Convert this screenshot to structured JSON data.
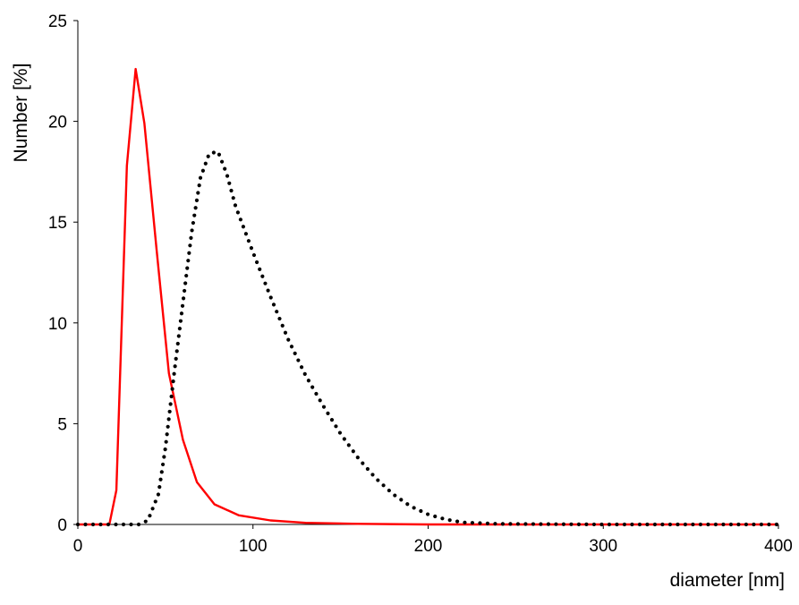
{
  "chart_data": {
    "type": "line",
    "title": "",
    "xlabel": "diameter [nm]",
    "ylabel": "Number [%]",
    "xlim": [
      0,
      400
    ],
    "ylim": [
      0,
      25
    ],
    "x_ticks": [
      0,
      100,
      200,
      300,
      400
    ],
    "y_ticks": [
      0,
      5,
      10,
      15,
      20,
      25
    ],
    "grid": false,
    "legend": "none",
    "series": [
      {
        "style": "solid",
        "color": "#ff0000",
        "points": [
          [
            0,
            0
          ],
          [
            18,
            0
          ],
          [
            22,
            1.7
          ],
          [
            28,
            17.8
          ],
          [
            33,
            22.6
          ],
          [
            38,
            19.9
          ],
          [
            45,
            13.6
          ],
          [
            52,
            7.5
          ],
          [
            60,
            4.2
          ],
          [
            68,
            2.1
          ],
          [
            78,
            1.0
          ],
          [
            92,
            0.45
          ],
          [
            110,
            0.2
          ],
          [
            130,
            0.08
          ],
          [
            160,
            0.03
          ],
          [
            200,
            0.0
          ],
          [
            400,
            0.0
          ]
        ]
      },
      {
        "style": "dotted",
        "color": "#000000",
        "points": [
          [
            0,
            0
          ],
          [
            35,
            0
          ],
          [
            40,
            0.2
          ],
          [
            46,
            1.5
          ],
          [
            50,
            3.8
          ],
          [
            55,
            7.5
          ],
          [
            60,
            11.0
          ],
          [
            65,
            14.5
          ],
          [
            70,
            17.2
          ],
          [
            75,
            18.4
          ],
          [
            80,
            18.5
          ],
          [
            85,
            17.4
          ],
          [
            90,
            15.8
          ],
          [
            100,
            13.5
          ],
          [
            110,
            11.3
          ],
          [
            120,
            9.2
          ],
          [
            130,
            7.4
          ],
          [
            140,
            5.9
          ],
          [
            150,
            4.5
          ],
          [
            160,
            3.3
          ],
          [
            170,
            2.3
          ],
          [
            180,
            1.5
          ],
          [
            190,
            0.9
          ],
          [
            200,
            0.5
          ],
          [
            210,
            0.25
          ],
          [
            220,
            0.1
          ],
          [
            240,
            0.03
          ],
          [
            300,
            0.0
          ],
          [
            400,
            0.0
          ]
        ]
      }
    ]
  }
}
